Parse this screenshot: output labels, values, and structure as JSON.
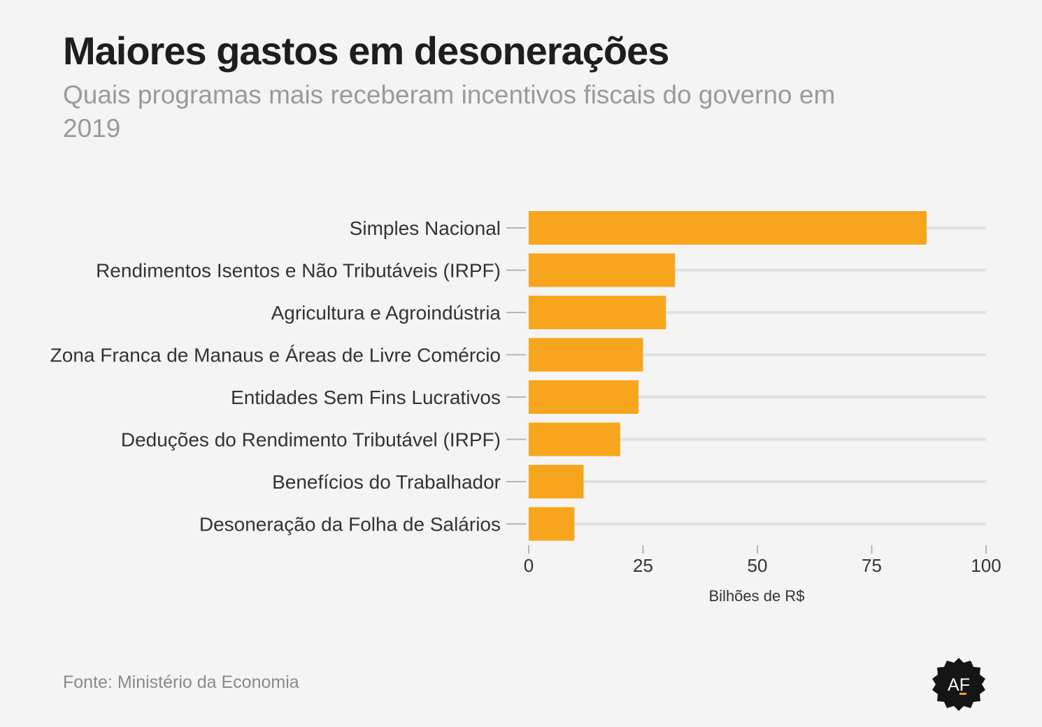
{
  "header": {
    "title": "Maiores gastos em desonerações",
    "subtitle": "Quais programas mais receberam incentivos fiscais do governo em 2019"
  },
  "footer": {
    "source": "Fonte: Ministério da Economia",
    "logo_text": "AF",
    "logo_icon": "af-badge-icon"
  },
  "colors": {
    "bar": "#f7a51d",
    "grid": "#e0e0e0",
    "tick": "#b5b5b5"
  },
  "chart_data": {
    "type": "bar",
    "orientation": "horizontal",
    "categories": [
      "Simples Nacional",
      "Rendimentos Isentos e Não Tributáveis (IRPF)",
      "Agricultura e Agroindústria",
      "Zona Franca de Manaus e Áreas de Livre Comércio",
      "Entidades Sem Fins Lucrativos",
      "Deduções do Rendimento Tributável (IRPF)",
      "Benefícios do Trabalhador",
      "Desoneração da Folha de Salários"
    ],
    "values": [
      87,
      32,
      30,
      25,
      24,
      20,
      12,
      10
    ],
    "xlabel": "Bilhões de R$",
    "xlim": [
      0,
      100
    ],
    "xticks": [
      0,
      25,
      50,
      75,
      100
    ],
    "grid": true
  }
}
